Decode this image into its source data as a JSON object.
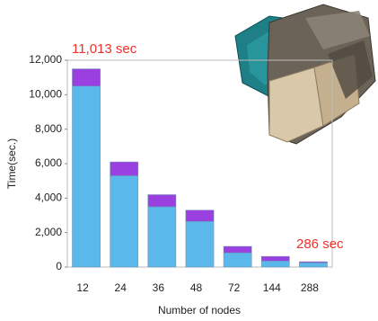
{
  "chart_data": {
    "type": "stacked-bar",
    "y_label": "Time(sec.)",
    "x_label": "Number of nodes",
    "categories": [
      "12",
      "24",
      "36",
      "48",
      "72",
      "144",
      "288"
    ],
    "series": [
      {
        "color": "#5bb8ea",
        "values": [
          10500,
          5300,
          3500,
          2650,
          830,
          350,
          250
        ]
      },
      {
        "color": "#9b40e0",
        "values": [
          1000,
          800,
          700,
          650,
          370,
          270,
          60
        ]
      }
    ],
    "ylim": [
      0,
      12000
    ],
    "yticks": [
      0,
      {
        "value": 2000,
        "label": "2,000"
      },
      {
        "value": 4000,
        "label": "4,000"
      },
      {
        "value": 6000,
        "label": "6,000"
      },
      {
        "value": 8000,
        "label": "8,000"
      },
      {
        "value": 10000,
        "label": "10,000"
      },
      {
        "value": 12000,
        "label": "12,000"
      }
    ],
    "annotations": [
      "11,013 sec",
      "286 sec"
    ]
  }
}
